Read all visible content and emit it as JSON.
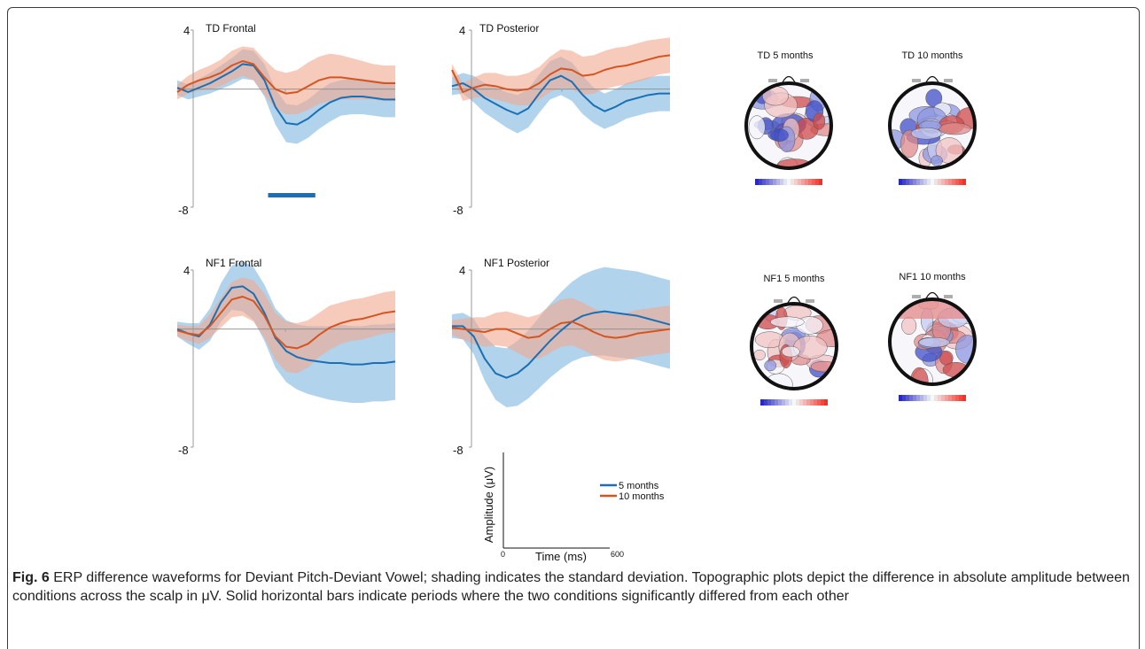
{
  "colors": {
    "five_months": "#1a6fb5",
    "ten_months": "#d4551f",
    "five_band": "#7fb6df",
    "ten_band": "#f1a98d",
    "sig_bar": "#1a6fb5"
  },
  "chart_data": [
    {
      "type": "line",
      "title": "TD Frontal",
      "x": [
        0,
        30,
        60,
        90,
        120,
        150,
        180,
        210,
        240,
        270,
        300,
        330,
        360,
        390,
        420,
        450,
        480,
        510,
        540,
        570,
        600
      ],
      "xlim": [
        0,
        600
      ],
      "ylim": [
        -8,
        4
      ],
      "yticks": [
        "4",
        "-8"
      ],
      "series": [
        {
          "name": "5 months",
          "values": [
            0.1,
            -0.2,
            0.1,
            0.4,
            0.8,
            1.2,
            1.7,
            1.6,
            0.6,
            -1.2,
            -2.3,
            -2.4,
            -2.0,
            -1.4,
            -0.9,
            -0.6,
            -0.5,
            -0.5,
            -0.6,
            -0.7,
            -0.7
          ],
          "sd": [
            0.5,
            0.5,
            0.6,
            0.7,
            0.8,
            0.9,
            1.0,
            1.0,
            1.1,
            1.2,
            1.3,
            1.3,
            1.3,
            1.3,
            1.3,
            1.2,
            1.2,
            1.2,
            1.2,
            1.2,
            1.2
          ]
        },
        {
          "name": "10 months",
          "values": [
            -0.2,
            0.3,
            0.6,
            0.8,
            1.1,
            1.6,
            1.9,
            1.7,
            0.8,
            0.0,
            -0.3,
            -0.2,
            0.2,
            0.6,
            0.8,
            0.8,
            0.7,
            0.6,
            0.5,
            0.4,
            0.4
          ],
          "sd": [
            0.5,
            0.6,
            0.7,
            0.8,
            0.9,
            1.0,
            1.0,
            1.1,
            1.2,
            1.3,
            1.4,
            1.5,
            1.6,
            1.6,
            1.6,
            1.5,
            1.4,
            1.3,
            1.2,
            1.2,
            1.2
          ]
        }
      ],
      "significance": [
        [
          250,
          380
        ]
      ]
    },
    {
      "type": "line",
      "title": "TD Posterior",
      "x": [
        0,
        30,
        60,
        90,
        120,
        150,
        180,
        210,
        240,
        270,
        300,
        330,
        360,
        390,
        420,
        450,
        480,
        510,
        540,
        570,
        600
      ],
      "xlim": [
        0,
        600
      ],
      "ylim": [
        -8,
        4
      ],
      "yticks": [
        "4",
        "-8"
      ],
      "series": [
        {
          "name": "5 months",
          "values": [
            0.2,
            0.4,
            0.0,
            -0.6,
            -1.0,
            -1.4,
            -1.7,
            -1.3,
            -0.3,
            0.6,
            0.9,
            0.5,
            -0.4,
            -1.1,
            -1.5,
            -1.2,
            -0.8,
            -0.6,
            -0.4,
            -0.3,
            -0.3
          ],
          "sd": [
            0.6,
            0.7,
            0.9,
            1.0,
            1.1,
            1.2,
            1.3,
            1.3,
            1.3,
            1.3,
            1.3,
            1.3,
            1.3,
            1.2,
            1.2,
            1.2,
            1.2,
            1.2,
            1.2,
            1.2,
            1.2
          ]
        },
        {
          "name": "10 months",
          "values": [
            1.3,
            -0.2,
            0.1,
            0.3,
            0.2,
            0.0,
            -0.1,
            0.0,
            0.4,
            1.0,
            1.4,
            1.3,
            0.9,
            1.0,
            1.3,
            1.5,
            1.6,
            1.8,
            2.0,
            2.2,
            2.3
          ],
          "sd": [
            0.4,
            0.6,
            0.7,
            0.8,
            0.9,
            0.9,
            1.0,
            1.1,
            1.1,
            1.2,
            1.3,
            1.3,
            1.3,
            1.3,
            1.3,
            1.3,
            1.3,
            1.3,
            1.3,
            1.2,
            1.2
          ]
        }
      ]
    },
    {
      "type": "line",
      "title": "NF1 Frontal",
      "x": [
        0,
        30,
        60,
        90,
        120,
        150,
        180,
        210,
        240,
        270,
        300,
        330,
        360,
        390,
        420,
        450,
        480,
        510,
        540,
        570,
        600
      ],
      "xlim": [
        0,
        600
      ],
      "ylim": [
        -8,
        4
      ],
      "yticks": [
        "4",
        "-8"
      ],
      "series": [
        {
          "name": "5 months",
          "values": [
            0.0,
            -0.3,
            -0.5,
            0.3,
            1.8,
            2.8,
            2.9,
            2.4,
            1.1,
            -0.6,
            -1.5,
            -1.9,
            -2.1,
            -2.2,
            -2.3,
            -2.3,
            -2.4,
            -2.4,
            -2.3,
            -2.3,
            -2.2
          ],
          "sd": [
            0.5,
            0.7,
            0.9,
            1.1,
            1.3,
            1.5,
            1.7,
            1.8,
            1.9,
            2.0,
            2.1,
            2.2,
            2.3,
            2.4,
            2.5,
            2.6,
            2.6,
            2.6,
            2.6,
            2.6,
            2.6
          ]
        },
        {
          "name": "10 months",
          "values": [
            -0.1,
            -0.3,
            -0.4,
            0.2,
            1.1,
            2.0,
            2.2,
            1.9,
            0.9,
            -0.5,
            -1.2,
            -1.3,
            -1.0,
            -0.4,
            0.1,
            0.4,
            0.6,
            0.7,
            0.9,
            1.1,
            1.2
          ],
          "sd": [
            0.4,
            0.5,
            0.6,
            0.8,
            1.0,
            1.2,
            1.3,
            1.4,
            1.5,
            1.6,
            1.7,
            1.7,
            1.6,
            1.5,
            1.5,
            1.4,
            1.4,
            1.4,
            1.4,
            1.4,
            1.4
          ]
        }
      ]
    },
    {
      "type": "line",
      "title": "NF1 Posterior",
      "x": [
        0,
        30,
        60,
        90,
        120,
        150,
        180,
        210,
        240,
        270,
        300,
        330,
        360,
        390,
        420,
        450,
        480,
        510,
        540,
        570,
        600
      ],
      "xlim": [
        0,
        600
      ],
      "ylim": [
        -8,
        4
      ],
      "yticks": [
        "4",
        "-8"
      ],
      "series": [
        {
          "name": "5 months",
          "values": [
            0.2,
            0.2,
            -0.5,
            -2.0,
            -3.0,
            -3.3,
            -3.0,
            -2.4,
            -1.6,
            -0.8,
            -0.1,
            0.5,
            0.9,
            1.1,
            1.2,
            1.1,
            1.0,
            0.9,
            0.7,
            0.5,
            0.3
          ],
          "sd": [
            0.8,
            0.9,
            1.2,
            1.5,
            1.8,
            2.0,
            2.2,
            2.3,
            2.4,
            2.5,
            2.6,
            2.7,
            2.8,
            2.9,
            3.0,
            3.0,
            3.0,
            3.0,
            3.0,
            3.0,
            3.0
          ]
        },
        {
          "name": "10 months",
          "values": [
            0.1,
            0.0,
            -0.1,
            -0.2,
            0.0,
            0.0,
            -0.3,
            -0.6,
            -0.5,
            0.0,
            0.4,
            0.5,
            0.2,
            -0.2,
            -0.5,
            -0.6,
            -0.5,
            -0.3,
            -0.2,
            -0.1,
            0.0
          ],
          "sd": [
            0.5,
            0.7,
            0.9,
            1.0,
            1.1,
            1.2,
            1.3,
            1.4,
            1.5,
            1.6,
            1.6,
            1.6,
            1.6,
            1.6,
            1.6,
            1.6,
            1.6,
            1.6,
            1.6,
            1.6,
            1.6
          ]
        }
      ]
    },
    {
      "type": "heatmap",
      "title": "TD 5 months"
    },
    {
      "type": "heatmap",
      "title": "TD 10 months"
    },
    {
      "type": "heatmap",
      "title": "NF1 5 months"
    },
    {
      "type": "heatmap",
      "title": "NF1 10 months"
    }
  ],
  "key": {
    "ylabel": "Amplitude (μV)",
    "xlabel": "Time (ms)",
    "xtick_start": "0",
    "xtick_end": "600",
    "legend": [
      "5 months",
      "10 months"
    ]
  },
  "caption": {
    "label": "Fig. 6",
    "text": "ERP difference waveforms for Deviant Pitch-Deviant Vowel; shading indicates the standard deviation. Topographic plots depict the difference in absolute amplitude between conditions across the scalp in μV. Solid horizontal bars indicate periods where the two conditions significantly differed from each other"
  }
}
